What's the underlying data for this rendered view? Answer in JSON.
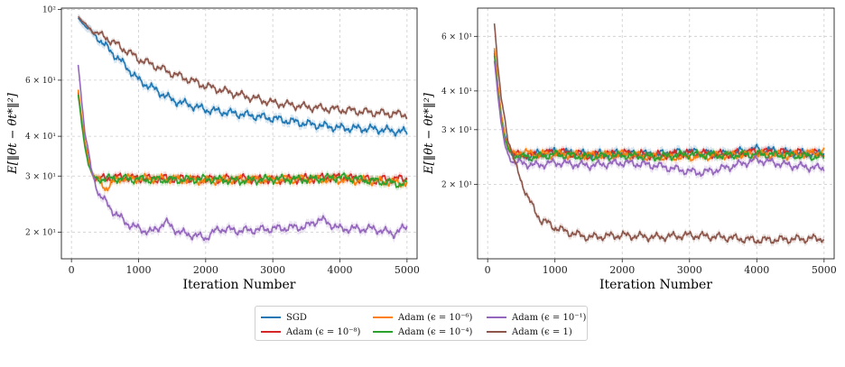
{
  "chart_data": [
    {
      "type": "line",
      "xlabel": "Iteration Number",
      "ylabel": "E[‖θt − θt*‖²]",
      "yscale": "log",
      "xlim": [
        -150,
        5150
      ],
      "ylim": [
        16.5,
        101
      ],
      "xticks": [
        0,
        1000,
        2000,
        3000,
        4000,
        5000
      ],
      "xtick_labels": [
        "0",
        "1000",
        "2000",
        "3000",
        "4000",
        "5000"
      ],
      "yticks": [
        20,
        30,
        40,
        60,
        100
      ],
      "ytick_labels": [
        "2 × 10¹",
        "3 × 10¹",
        "4 × 10¹",
        "6 × 10¹",
        "10²"
      ],
      "grid": true,
      "series": [
        {
          "key": "sgd",
          "color": "#1f77b4",
          "band": 0.03,
          "x": [
            100,
            200,
            300,
            400,
            500,
            700,
            1000,
            1500,
            2000,
            2500,
            3000,
            3500,
            4000,
            4500,
            5000
          ],
          "y": [
            94,
            89,
            85,
            81,
            77,
            70,
            60,
            52,
            48.5,
            47,
            45.5,
            43.8,
            42.5,
            42.2,
            41.2
          ]
        },
        {
          "key": "adam_1e-8",
          "color": "#d62728",
          "band": 0.025,
          "x": [
            100,
            150,
            200,
            250,
            300,
            350,
            400,
            500,
            700,
            1000,
            1500,
            2000,
            2500,
            3000,
            3500,
            4000,
            4500,
            5000
          ],
          "y": [
            55,
            45,
            38,
            34,
            31,
            29.5,
            29.5,
            29.5,
            29.8,
            29.5,
            29.5,
            29.3,
            29.5,
            29.2,
            29.5,
            29.8,
            29.2,
            29.5
          ]
        },
        {
          "key": "adam_1e-6",
          "color": "#ff7f0e",
          "band": 0.025,
          "x": [
            100,
            150,
            200,
            250,
            300,
            350,
            400,
            500,
            550,
            700,
            1000,
            1500,
            2000,
            2500,
            3000,
            3500,
            4000,
            4500,
            5000
          ],
          "y": [
            56,
            46,
            38,
            34,
            31,
            29.5,
            29.5,
            27.5,
            27.8,
            29.5,
            29.5,
            29.4,
            29,
            29.3,
            29.2,
            29.4,
            29.2,
            29,
            28.5
          ]
        },
        {
          "key": "adam_1e-4",
          "color": "#2ca02c",
          "band": 0.025,
          "x": [
            100,
            150,
            200,
            250,
            300,
            350,
            400,
            500,
            700,
            1000,
            1500,
            2000,
            2500,
            3000,
            3500,
            4000,
            4500,
            5000
          ],
          "y": [
            54,
            44,
            37,
            33,
            30.5,
            29.5,
            29.2,
            29.5,
            29.5,
            29.3,
            29.2,
            29.4,
            29,
            29.4,
            29.3,
            29.8,
            29,
            28.2
          ]
        },
        {
          "key": "adam_1e-1",
          "color": "#9467bd",
          "band": 0.03,
          "x": [
            100,
            150,
            200,
            300,
            400,
            500,
            600,
            800,
            1000,
            1200,
            1400,
            1600,
            2000,
            2200,
            2500,
            3000,
            3500,
            3700,
            4000,
            4500,
            4800,
            5000
          ],
          "y": [
            67,
            52,
            41,
            31,
            26.5,
            25,
            23.5,
            21.5,
            20.5,
            20,
            21.5,
            20,
            19.2,
            20.5,
            20.2,
            20.5,
            20.8,
            22,
            20.5,
            20.5,
            19.8,
            20.8
          ]
        },
        {
          "key": "adam_1",
          "color": "#8c564b",
          "band": 0.02,
          "x": [
            100,
            200,
            300,
            400,
            500,
            700,
            1000,
            1500,
            2000,
            2500,
            3000,
            3500,
            4000,
            4500,
            5000
          ],
          "y": [
            95,
            90,
            86,
            84,
            82,
            77,
            70,
            63,
            57.5,
            54,
            51,
            49.5,
            48.5,
            47.5,
            46.8
          ]
        }
      ]
    },
    {
      "type": "line",
      "xlabel": "Iteration Number",
      "ylabel": "E[‖θt − θt*‖²]",
      "yscale": "log",
      "xlim": [
        -150,
        5150
      ],
      "ylim": [
        11.5,
        74
      ],
      "xticks": [
        0,
        1000,
        2000,
        3000,
        4000,
        5000
      ],
      "xtick_labels": [
        "0",
        "1000",
        "2000",
        "3000",
        "4000",
        "5000"
      ],
      "yticks": [
        20,
        30,
        40,
        60
      ],
      "ytick_labels": [
        "2 × 10¹",
        "3 × 10¹",
        "4 × 10¹",
        "6 × 10¹"
      ],
      "grid": true,
      "series": [
        {
          "key": "sgd",
          "color": "#1f77b4",
          "band": 0.03,
          "x": [
            100,
            150,
            200,
            250,
            300,
            350,
            400,
            500,
            700,
            1000,
            1500,
            2000,
            2500,
            3000,
            3500,
            4000,
            4500,
            5000
          ],
          "y": [
            54,
            42,
            34,
            29,
            26.5,
            25.5,
            25,
            24.5,
            25,
            25.5,
            25,
            25.2,
            25,
            25.5,
            25,
            26,
            25.3,
            25
          ]
        },
        {
          "key": "adam_1e-8",
          "color": "#d62728",
          "band": 0.025,
          "x": [
            100,
            150,
            200,
            250,
            300,
            350,
            400,
            500,
            700,
            1000,
            1500,
            2000,
            2500,
            3000,
            3500,
            4000,
            4500,
            5000
          ],
          "y": [
            53,
            41,
            33,
            28.5,
            26.5,
            25.5,
            25,
            25,
            24.8,
            25.5,
            24.8,
            25.2,
            24.8,
            25.2,
            25,
            25.5,
            25.3,
            25.2
          ]
        },
        {
          "key": "adam_1e-6",
          "color": "#ff7f0e",
          "band": 0.025,
          "x": [
            100,
            150,
            200,
            250,
            300,
            350,
            400,
            500,
            700,
            1000,
            1500,
            2000,
            2500,
            3000,
            3500,
            4000,
            4500,
            5000
          ],
          "y": [
            55,
            42,
            34,
            29,
            26.5,
            25.5,
            25,
            25.5,
            25,
            25,
            24.8,
            25,
            24.5,
            24.5,
            24.8,
            25,
            24.8,
            25.5
          ]
        },
        {
          "key": "adam_1e-4",
          "color": "#2ca02c",
          "band": 0.025,
          "x": [
            100,
            150,
            200,
            250,
            300,
            350,
            400,
            500,
            700,
            1000,
            1500,
            2000,
            2500,
            3000,
            3500,
            4000,
            4500,
            5000
          ],
          "y": [
            52,
            40,
            32.5,
            28,
            26,
            25,
            24.8,
            24.5,
            24.5,
            25,
            24.5,
            24.8,
            24.5,
            25,
            24.8,
            25,
            24.8,
            24.5
          ]
        },
        {
          "key": "adam_1e-1",
          "color": "#9467bd",
          "band": 0.03,
          "x": [
            100,
            150,
            200,
            250,
            300,
            350,
            400,
            500,
            700,
            1000,
            1500,
            2000,
            2500,
            3000,
            3200,
            3500,
            4000,
            4500,
            5000
          ],
          "y": [
            50,
            39,
            31.5,
            27,
            25,
            24,
            23.5,
            23.5,
            23,
            23.5,
            23,
            23.5,
            23,
            22,
            21.8,
            22.5,
            24,
            23,
            22.5
          ]
        },
        {
          "key": "adam_1",
          "color": "#8c564b",
          "band": 0.025,
          "x": [
            100,
            150,
            200,
            300,
            400,
            500,
            600,
            700,
            800,
            900,
            1000,
            1200,
            1500,
            2000,
            2500,
            3000,
            3500,
            4000,
            4500,
            5000
          ],
          "y": [
            66,
            48,
            38,
            28,
            23.5,
            20.5,
            18,
            16.5,
            15.2,
            15,
            14.5,
            14,
            13.5,
            13.7,
            13.5,
            13.7,
            13.5,
            13.2,
            13.3,
            13.4
          ]
        }
      ]
    }
  ],
  "legend": [
    {
      "key": "sgd",
      "label": "SGD",
      "color": "#1f77b4"
    },
    {
      "key": "adam_1e-8",
      "label": "Adam (ϵ = 10⁻⁸)",
      "color": "#d62728"
    },
    {
      "key": "adam_1e-6",
      "label": "Adam (ϵ = 10⁻⁶)",
      "color": "#ff7f0e"
    },
    {
      "key": "adam_1e-4",
      "label": "Adam (ϵ = 10⁻⁴)",
      "color": "#2ca02c"
    },
    {
      "key": "adam_1e-1",
      "label": "Adam (ϵ = 10⁻¹)",
      "color": "#9467bd"
    },
    {
      "key": "adam_1",
      "label": "Adam (ϵ = 1)",
      "color": "#8c564b"
    }
  ]
}
